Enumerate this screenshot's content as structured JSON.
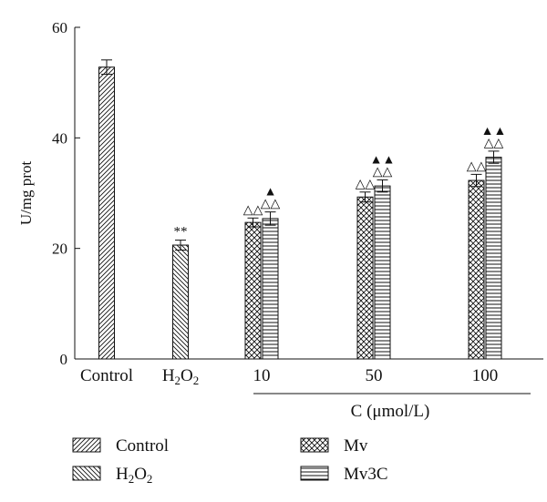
{
  "chart_data": {
    "type": "bar",
    "title": "",
    "ylabel": "U/mg prot",
    "xlabel": "C (μmol/L)",
    "ylim": [
      0,
      60
    ],
    "yticks": [
      0,
      20,
      40,
      60
    ],
    "categories": [
      "Control",
      "H2O2",
      "10",
      "50",
      "100"
    ],
    "category_labels": [
      {
        "base": "Control"
      },
      {
        "base": "H",
        "sub1": "2",
        "mid": "O",
        "sub2": "2"
      },
      {
        "base": "10"
      },
      {
        "base": "50"
      },
      {
        "base": "100"
      }
    ],
    "bars": [
      {
        "category": "Control",
        "series": "Control",
        "value": 52.8,
        "error": 1.3,
        "marks": []
      },
      {
        "category": "H2O2",
        "series": "H2O2",
        "value": 20.6,
        "error": 0.9,
        "marks": [
          "**"
        ]
      },
      {
        "category": "10",
        "series": "Mv",
        "value": 24.7,
        "error": 0.8,
        "marks": [
          "△△"
        ]
      },
      {
        "category": "10",
        "series": "Mv3C",
        "value": 25.4,
        "error": 1.2,
        "marks": [
          "△△",
          "▲"
        ]
      },
      {
        "category": "50",
        "series": "Mv",
        "value": 29.3,
        "error": 0.9,
        "marks": [
          "△△"
        ]
      },
      {
        "category": "50",
        "series": "Mv3C",
        "value": 31.3,
        "error": 1.1,
        "marks": [
          "△△",
          "▲▲"
        ]
      },
      {
        "category": "100",
        "series": "Mv",
        "value": 32.3,
        "error": 1.1,
        "marks": [
          "△△"
        ]
      },
      {
        "category": "100",
        "series": "Mv3C",
        "value": 36.5,
        "error": 1.1,
        "marks": [
          "△△",
          "▲▲"
        ]
      }
    ],
    "legend": {
      "placement": "bottom",
      "entries": [
        {
          "name": "Control",
          "pattern": "diag-up",
          "label": {
            "base": "Control"
          }
        },
        {
          "name": "Mv",
          "pattern": "crosshatch",
          "label": {
            "base": "Mv"
          }
        },
        {
          "name": "H2O2",
          "pattern": "diag-down",
          "label": {
            "base": "H",
            "sub1": "2",
            "mid": "O",
            "sub2": "2"
          }
        },
        {
          "name": "Mv3C",
          "pattern": "horizontal",
          "label": {
            "base": "Mv3C"
          }
        }
      ]
    },
    "grid": false,
    "colors": {
      "ink": "#111111",
      "bar_fill": "#ffffff"
    }
  }
}
